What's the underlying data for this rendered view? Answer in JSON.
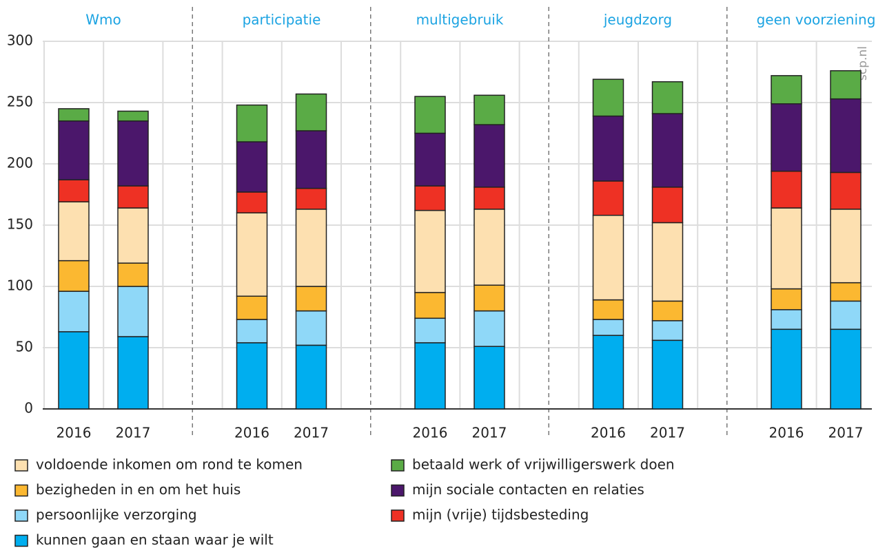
{
  "chart_data": {
    "type": "stacked_bar",
    "groups": [
      "Wmo",
      "participatie",
      "multigebruik",
      "jeugdzorg",
      "geen voorziening"
    ],
    "categories": [
      "2016",
      "2017",
      "2016",
      "2017",
      "2016",
      "2017",
      "2016",
      "2017",
      "2016",
      "2017"
    ],
    "series": [
      {
        "name": "kunnen gaan en staan waar je wilt",
        "color": "#00aeef",
        "values": [
          63,
          59,
          54,
          52,
          54,
          51,
          60,
          56,
          65,
          65
        ]
      },
      {
        "name": "persoonlijke verzorging",
        "color": "#8fd8f8",
        "values": [
          33,
          41,
          19,
          28,
          20,
          29,
          13,
          16,
          16,
          23
        ]
      },
      {
        "name": "bezigheden in en om het huis",
        "color": "#fbb831",
        "values": [
          25,
          19,
          19,
          20,
          21,
          21,
          16,
          16,
          17,
          15
        ]
      },
      {
        "name": "voldoende inkomen om rond te komen",
        "color": "#fde0b0",
        "values": [
          48,
          45,
          68,
          63,
          67,
          62,
          69,
          64,
          66,
          60
        ]
      },
      {
        "name": "mijn (vrije) tijdsbesteding",
        "color": "#ee3124",
        "values": [
          18,
          18,
          17,
          17,
          20,
          18,
          28,
          29,
          30,
          30
        ]
      },
      {
        "name": "mijn sociale contacten en relaties",
        "color": "#4b176b",
        "values": [
          48,
          53,
          41,
          47,
          43,
          51,
          53,
          60,
          55,
          60
        ]
      },
      {
        "name": "betaald werk of vrijwilligerswerk doen",
        "color": "#5aab46",
        "values": [
          10,
          8,
          30,
          30,
          30,
          24,
          30,
          26,
          23,
          23
        ]
      }
    ],
    "ylim": [
      0,
      300
    ],
    "yticks": [
      0,
      50,
      100,
      150,
      200,
      250,
      300
    ],
    "grid": true,
    "source": "scp.nl"
  }
}
